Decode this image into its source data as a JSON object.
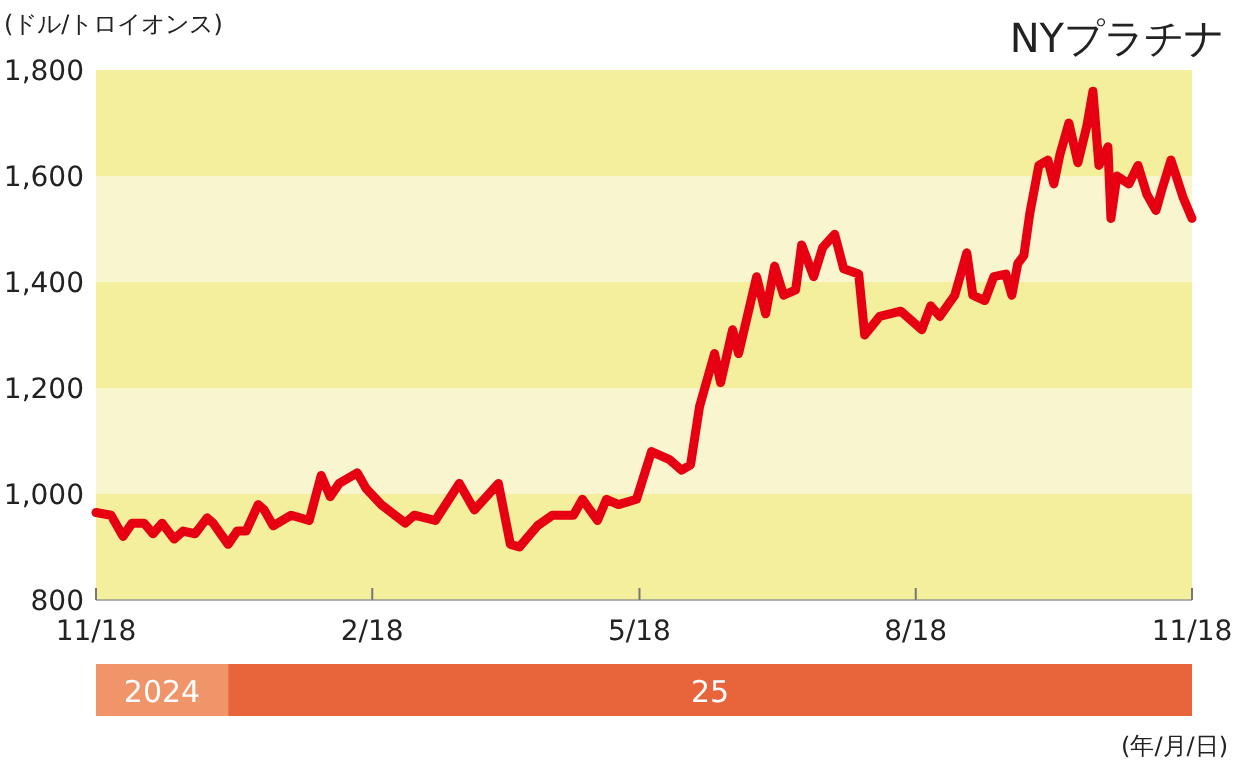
{
  "chart_data": {
    "type": "line",
    "title": "NYプラチナ",
    "ylabel": "(ドル/トロイオンス)",
    "annotations": [
      "2024",
      "25",
      "(年/月/日)"
    ],
    "xlim": [
      "2024-11-18",
      "2025-11-18"
    ],
    "xticks": [
      {
        "value": "2024-11-18",
        "label": "11/18"
      },
      {
        "value": "2025-02-18",
        "label": "2/18"
      },
      {
        "value": "2025-05-18",
        "label": "5/18"
      },
      {
        "value": "2025-08-18",
        "label": "8/18"
      },
      {
        "value": "2025-11-18",
        "label": "11/18"
      }
    ],
    "ylim": [
      800,
      1800
    ],
    "yticks": [
      800,
      {
        "value": 1000,
        "label": "1,000"
      },
      {
        "value": 1200,
        "label": "1,200"
      },
      {
        "value": 1400,
        "label": "1,400"
      },
      {
        "value": 1600,
        "label": "1,600"
      },
      {
        "value": 1800,
        "label": "1,800"
      }
    ],
    "grid": false,
    "marker": "none",
    "line_style": "solid",
    "bands": [
      {
        "axis": "y",
        "from": 1000,
        "to": 1200,
        "color": "#f9f6cf"
      },
      {
        "axis": "y",
        "from": 1400,
        "to": 1600,
        "color": "#f9f6cf"
      }
    ],
    "series": [
      {
        "color": "#e60012",
        "x": [
          "2024-11-18",
          "2024-11-23",
          "2024-11-27",
          "2024-11-30",
          "2024-12-04",
          "2024-12-07",
          "2024-12-10",
          "2024-12-14",
          "2024-12-17",
          "2024-12-21",
          "2024-12-25",
          "2024-12-27",
          "2025-01-01",
          "2025-01-04",
          "2025-01-07",
          "2025-01-11",
          "2025-01-13",
          "2025-01-16",
          "2025-01-22",
          "2025-01-28",
          "2025-02-01",
          "2025-02-04",
          "2025-02-07",
          "2025-02-13",
          "2025-02-16",
          "2025-02-21",
          "2025-03-01",
          "2025-03-04",
          "2025-03-11",
          "2025-03-19",
          "2025-03-24",
          "2025-04-01",
          "2025-04-05",
          "2025-04-08",
          "2025-04-14",
          "2025-04-19",
          "2025-04-26",
          "2025-04-29",
          "2025-05-04",
          "2025-05-07",
          "2025-05-11",
          "2025-05-17",
          "2025-05-22",
          "2025-05-28",
          "2025-06-01",
          "2025-06-04",
          "2025-06-07",
          "2025-06-12",
          "2025-06-14",
          "2025-06-18",
          "2025-06-20",
          "2025-06-26",
          "2025-06-29",
          "2025-07-02",
          "2025-07-05",
          "2025-07-09",
          "2025-07-11",
          "2025-07-15",
          "2025-07-18",
          "2025-07-22",
          "2025-07-25",
          "2025-07-30",
          "2025-08-01",
          "2025-08-06",
          "2025-08-13",
          "2025-08-20",
          "2025-08-23",
          "2025-08-26",
          "2025-08-31",
          "2025-09-04",
          "2025-09-06",
          "2025-09-10",
          "2025-09-13",
          "2025-09-17",
          "2025-09-19",
          "2025-09-21",
          "2025-09-23",
          "2025-09-25",
          "2025-09-28",
          "2025-10-01",
          "2025-10-03",
          "2025-10-05",
          "2025-10-08",
          "2025-10-11",
          "2025-10-14",
          "2025-10-16",
          "2025-10-18",
          "2025-10-21",
          "2025-10-22",
          "2025-10-24",
          "2025-10-28",
          "2025-10-31",
          "2025-11-03",
          "2025-11-06",
          "2025-11-08",
          "2025-11-11",
          "2025-11-15",
          "2025-11-18"
        ],
        "values": [
          965,
          960,
          920,
          945,
          945,
          925,
          945,
          915,
          930,
          925,
          955,
          945,
          905,
          930,
          930,
          980,
          970,
          940,
          960,
          950,
          1035,
          995,
          1020,
          1040,
          1010,
          980,
          945,
          960,
          950,
          1020,
          970,
          1020,
          905,
          900,
          940,
          960,
          960,
          990,
          950,
          990,
          980,
          990,
          1080,
          1065,
          1045,
          1055,
          1165,
          1265,
          1210,
          1310,
          1265,
          1410,
          1340,
          1430,
          1375,
          1385,
          1470,
          1410,
          1465,
          1490,
          1425,
          1415,
          1300,
          1335,
          1345,
          1310,
          1355,
          1335,
          1375,
          1455,
          1375,
          1365,
          1410,
          1415,
          1375,
          1435,
          1450,
          1530,
          1620,
          1630,
          1585,
          1640,
          1700,
          1625,
          1695,
          1760,
          1620,
          1655,
          1520,
          1600,
          1585,
          1620,
          1565,
          1535,
          1575,
          1630,
          1560,
          1520
        ]
      }
    ]
  }
}
